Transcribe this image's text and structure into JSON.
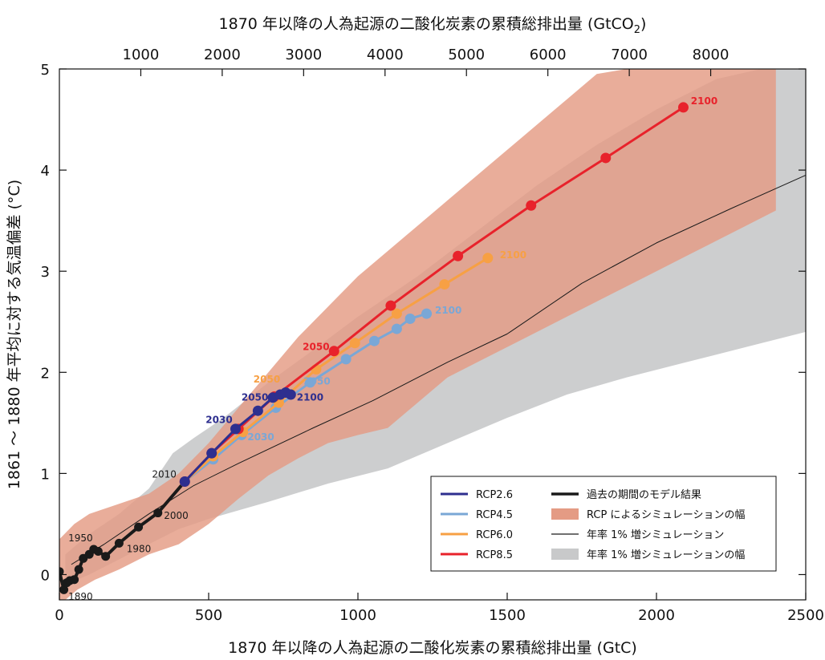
{
  "chart_data": {
    "type": "line",
    "title": "",
    "xlabel": "1870 年以降の人為起源の二酸化炭素の累積総排出量 (GtC)",
    "x2label_prefix": "1870 年以降の人為起源の二酸化炭素の累積総排出量 (GtCO",
    "x2label_sub": "2",
    "x2label_suffix": ")",
    "ylabel": "1861 ～ 1880 年平均に対する気温偏差 (°C)",
    "xlim": [
      0,
      2500
    ],
    "ylim": [
      -0.25,
      5
    ],
    "x_ticks": [
      0,
      500,
      1000,
      1500,
      2000,
      2500
    ],
    "x_tick_labels": [
      "0",
      "500",
      "1000",
      "1500",
      "2000",
      "2500"
    ],
    "y_ticks": [
      0,
      1,
      2,
      3,
      4,
      5
    ],
    "y_tick_labels": [
      "0",
      "1",
      "2",
      "3",
      "4",
      "5"
    ],
    "x2_ticks_gtco2": [
      1000,
      2000,
      3000,
      4000,
      5000,
      6000,
      7000,
      8000
    ],
    "x2_tick_labels": [
      "1000",
      "2000",
      "3000",
      "4000",
      "5000",
      "6000",
      "7000",
      "8000"
    ],
    "gtco2_per_gtc": 3.667,
    "grid": false,
    "legend_position": "bottom-right",
    "colors": {
      "rcp26": "#2e2f8f",
      "rcp45": "#7aa7d6",
      "rcp60": "#f7a044",
      "rcp85": "#e8222b",
      "historical": "#1a1a1a",
      "rcp_range": "#e49b84",
      "pct_range": "#c8c9ca"
    },
    "series": [
      {
        "key": "historical",
        "name": "過去の期間のモデル結果",
        "x": [
          0,
          15,
          25,
          35,
          50,
          65,
          80,
          100,
          115,
          130,
          155,
          200,
          265,
          330,
          420
        ],
        "y": [
          0.03,
          -0.15,
          -0.08,
          -0.06,
          -0.05,
          0.05,
          0.16,
          0.2,
          0.25,
          0.23,
          0.18,
          0.31,
          0.47,
          0.61,
          0.92
        ]
      },
      {
        "key": "rcp26",
        "name": "RCP2.6",
        "x": [
          420,
          510,
          590,
          665,
          715,
          740,
          758,
          775
        ],
        "y": [
          0.92,
          1.2,
          1.44,
          1.62,
          1.75,
          1.78,
          1.8,
          1.78
        ]
      },
      {
        "key": "rcp45",
        "name": "RCP4.5",
        "x": [
          420,
          515,
          610,
          725,
          840,
          960,
          1055,
          1130,
          1175,
          1230
        ],
        "y": [
          0.92,
          1.14,
          1.38,
          1.65,
          1.9,
          2.13,
          2.31,
          2.43,
          2.53,
          2.58
        ]
      },
      {
        "key": "rcp60",
        "name": "RCP6.0",
        "x": [
          420,
          515,
          615,
          735,
          860,
          990,
          1130,
          1290,
          1435
        ],
        "y": [
          0.92,
          1.17,
          1.41,
          1.7,
          2.03,
          2.29,
          2.58,
          2.87,
          3.13
        ]
      },
      {
        "key": "rcp85",
        "name": "RCP8.5",
        "x": [
          420,
          510,
          600,
          720,
          920,
          1110,
          1335,
          1580,
          1830,
          2090
        ],
        "y": [
          0.92,
          1.2,
          1.44,
          1.76,
          2.21,
          2.66,
          3.15,
          3.65,
          4.12,
          4.62
        ]
      },
      {
        "key": "pct1",
        "name": "年率 1% 増シミュレーション",
        "x": [
          40,
          150,
          300,
          450,
          600,
          850,
          1050,
          1300,
          1500,
          1750,
          2000,
          2250,
          2500
        ],
        "y": [
          0.1,
          0.3,
          0.6,
          0.88,
          1.1,
          1.45,
          1.72,
          2.1,
          2.38,
          2.88,
          3.28,
          3.62,
          3.95
        ]
      }
    ],
    "bands": [
      {
        "key": "pct_range",
        "name": "年率 1% 増シミュレーションの幅",
        "upper": {
          "x": [
            20,
            100,
            200,
            300,
            380,
            450,
            550,
            700,
            850,
            1000,
            1200,
            1400,
            1600,
            1800,
            2000,
            2200,
            2350,
            2500
          ],
          "y": [
            0.2,
            0.4,
            0.6,
            0.85,
            1.2,
            1.35,
            1.55,
            1.9,
            2.22,
            2.55,
            2.95,
            3.4,
            3.85,
            4.25,
            4.6,
            4.9,
            5.0,
            5.0
          ]
        },
        "lower": {
          "x": [
            20,
            100,
            200,
            300,
            400,
            500,
            700,
            900,
            1100,
            1300,
            1500,
            1700,
            1900,
            2100,
            2300,
            2500
          ],
          "y": [
            -0.1,
            0.0,
            0.15,
            0.3,
            0.45,
            0.55,
            0.72,
            0.9,
            1.05,
            1.3,
            1.55,
            1.78,
            1.95,
            2.1,
            2.25,
            2.4
          ]
        }
      },
      {
        "key": "rcp_range",
        "name": "RCP によるシミュレーションの幅",
        "upper": {
          "x": [
            0,
            50,
            100,
            200,
            300,
            400,
            500,
            600,
            700,
            800,
            900,
            1000,
            1100,
            1200,
            1300,
            1400,
            1500,
            1600,
            1700,
            1800,
            1900,
            2000,
            2100,
            2200,
            2300,
            2400
          ],
          "y": [
            0.35,
            0.5,
            0.6,
            0.7,
            0.8,
            1.0,
            1.3,
            1.65,
            2.0,
            2.35,
            2.65,
            2.95,
            3.2,
            3.45,
            3.7,
            3.95,
            4.2,
            4.45,
            4.7,
            4.95,
            5.0,
            5.0,
            5.0,
            5.0,
            5.0,
            5.0
          ]
        },
        "lower": {
          "x": [
            0,
            60,
            120,
            200,
            300,
            400,
            500,
            600,
            700,
            800,
            900,
            1000,
            1100,
            1200,
            1300,
            1400,
            1500,
            1600,
            1700,
            1800,
            1900,
            2000,
            2100,
            2200,
            2300,
            2400
          ],
          "y": [
            -0.3,
            -0.15,
            -0.05,
            0.05,
            0.2,
            0.3,
            0.5,
            0.75,
            0.98,
            1.15,
            1.3,
            1.38,
            1.45,
            1.7,
            1.95,
            2.1,
            2.25,
            2.4,
            2.55,
            2.7,
            2.85,
            3.0,
            3.15,
            3.3,
            3.45,
            3.6
          ]
        }
      }
    ],
    "annotations": [
      {
        "text": "1950",
        "x": 30,
        "y": 0.33,
        "color": "#1a1a1a"
      },
      {
        "text": "1890",
        "x": 30,
        "y": -0.25,
        "color": "#1a1a1a"
      },
      {
        "text": "1980",
        "x": 225,
        "y": 0.22,
        "color": "#1a1a1a"
      },
      {
        "text": "2000",
        "x": 350,
        "y": 0.55,
        "color": "#1a1a1a"
      },
      {
        "text": "2010",
        "x": 310,
        "y": 0.96,
        "color": "#1a1a1a"
      },
      {
        "text": "2030",
        "x": 490,
        "y": 1.5,
        "color": "#2e2f8f"
      },
      {
        "text": "2030",
        "x": 630,
        "y": 1.33,
        "color": "#7aa7d6"
      },
      {
        "text": "2050",
        "x": 610,
        "y": 1.72,
        "color": "#2e2f8f"
      },
      {
        "text": "2050",
        "x": 650,
        "y": 1.9,
        "color": "#f7a044"
      },
      {
        "text": "2050",
        "x": 818,
        "y": 1.88,
        "color": "#7aa7d6"
      },
      {
        "text": "2100",
        "x": 795,
        "y": 1.72,
        "color": "#2e2f8f"
      },
      {
        "text": "2050",
        "x": 815,
        "y": 2.22,
        "color": "#e8222b"
      },
      {
        "text": "2100",
        "x": 1258,
        "y": 2.58,
        "color": "#7aa7d6"
      },
      {
        "text": "2100",
        "x": 1475,
        "y": 3.13,
        "color": "#f7a044"
      },
      {
        "text": "2100",
        "x": 2115,
        "y": 4.65,
        "color": "#e8222b"
      }
    ],
    "legend": {
      "left": [
        {
          "label": "RCP2.6",
          "key": "rcp26"
        },
        {
          "label": "RCP4.5",
          "key": "rcp45"
        },
        {
          "label": "RCP6.0",
          "key": "rcp60"
        },
        {
          "label": "RCP8.5",
          "key": "rcp85"
        }
      ],
      "right": [
        {
          "label": "過去の期間のモデル結果",
          "key": "historical",
          "style": "thick"
        },
        {
          "label": "RCP によるシミュレーションの幅",
          "key": "rcp_range",
          "style": "fill"
        },
        {
          "label": "年率 1% 増シミュレーション",
          "key": "pct1",
          "style": "thin"
        },
        {
          "label": "年率 1% 増シミュレーションの幅",
          "key": "pct_range",
          "style": "fill"
        }
      ]
    }
  }
}
